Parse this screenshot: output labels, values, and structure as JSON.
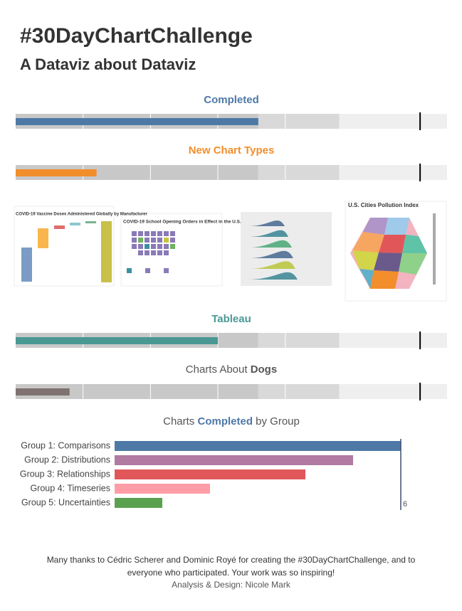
{
  "header": {
    "title": "#30DayChartChallenge",
    "subtitle": "A Dataviz about Dataviz"
  },
  "chart_data": [
    {
      "type": "bullet",
      "title": [
        {
          "text": "Completed",
          "bold": true
        }
      ],
      "title_color": "#4e79a7",
      "value": 18,
      "target": 30,
      "color": "#4e79a7",
      "xlim": [
        0,
        32
      ],
      "ranges": [
        18,
        24,
        32
      ],
      "grid_lines": [
        5,
        10,
        15,
        20
      ]
    },
    {
      "type": "bullet",
      "title": [
        {
          "text": "New Chart Types",
          "bold": true
        }
      ],
      "title_color": "#f28e2b",
      "value": 6,
      "target": 30,
      "color": "#f28e2b",
      "xlim": [
        0,
        32
      ],
      "ranges": [
        18,
        24,
        32
      ],
      "grid_lines": [
        5,
        10,
        15,
        20
      ]
    },
    {
      "type": "bullet",
      "title": [
        {
          "text": "Tableau",
          "bold": true
        }
      ],
      "title_color": "#499894",
      "value": 15,
      "target": 30,
      "color": "#499894",
      "xlim": [
        0,
        32
      ],
      "ranges": [
        18,
        24,
        32
      ],
      "grid_lines": [
        5,
        10,
        15,
        20
      ]
    },
    {
      "type": "bullet",
      "title": [
        {
          "text": "Charts About ",
          "bold": false
        },
        {
          "text": "Dogs",
          "bold": true
        }
      ],
      "title_color": "#555555",
      "value": 4,
      "target": 30,
      "color": "#7f7270",
      "xlim": [
        0,
        32
      ],
      "ranges": [
        18,
        24,
        32
      ],
      "grid_lines": [
        5,
        10,
        15,
        20
      ]
    },
    {
      "type": "hbar",
      "title": [
        {
          "text": "Charts ",
          "bold": false
        },
        {
          "text": "Completed",
          "bold": true
        },
        {
          "text": " by Group",
          "bold": false
        }
      ],
      "title_color": "#4e79a7",
      "categories": [
        "Group 1: Comparisons",
        "Group 2: Distributions",
        "Group 3: Relationships",
        "Group 4: Timeseries",
        "Group 5: Uncertainties"
      ],
      "values": [
        6,
        5,
        4,
        2,
        1
      ],
      "colors": [
        "#4e79a7",
        "#b07aa1",
        "#e15759",
        "#ff9da7",
        "#59a14f"
      ],
      "xlim": [
        0,
        6
      ],
      "reference_line": 6
    }
  ],
  "thumbnails": [
    {
      "title": "COVID-19 Vaccine Doses Administered Globally by Manufacturer"
    },
    {
      "title": "COVID-19 School Opening Orders in Effect in the U.S."
    },
    {
      "title": "U.S. Cities Pollution Index"
    }
  ],
  "footer": {
    "thanks": "Many thanks to Cédric Scherer and Dominic Royé for creating the #30DayChartChallenge, and to everyone who participated. Your work was so inspiring!",
    "credit": "Analysis & Design: Nicole Mark"
  }
}
